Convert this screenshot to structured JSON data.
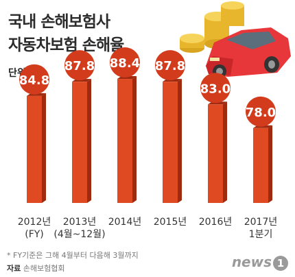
{
  "title_line1": "국내 손해보험사",
  "title_line2": "자동차보험 손해율",
  "unit_label": "단위",
  "unit_value": "%",
  "footnote": "* FY기준은 그해 4월부터 다음해 3월까지",
  "source_label": "자료",
  "source_value": "손해보험협회",
  "logo_text": "news",
  "logo_mark": "1",
  "colors": {
    "bar": "#e04a22",
    "bar_side": "#9e2a10",
    "circle": "#d23c1d",
    "circle_text": "#ffffff"
  },
  "chart_data": {
    "type": "bar",
    "categories": [
      "2012년\n(FY)",
      "2013년\n(4월~12월)",
      "2014년",
      "2015년",
      "2016년",
      "2017년\n1분기"
    ],
    "values": [
      84.8,
      87.8,
      88.4,
      87.8,
      83.0,
      78.0
    ],
    "value_labels": [
      "84.8",
      "87.8",
      "88.4",
      "87.8",
      "83.0",
      "78.0"
    ],
    "ylabel": "%"
  }
}
